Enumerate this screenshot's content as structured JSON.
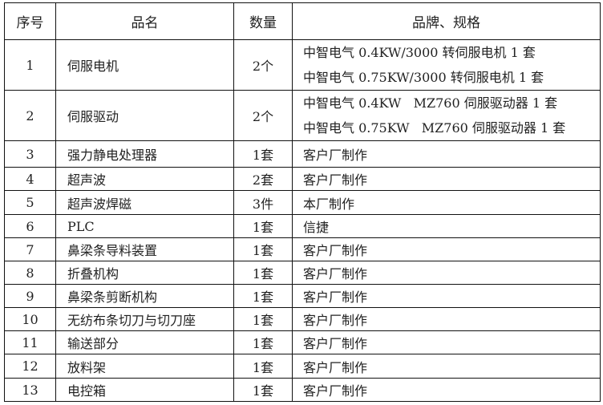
{
  "table": {
    "headers": [
      "序号",
      "品名",
      "数量",
      "品牌、规格"
    ],
    "rows": [
      {
        "no": "1",
        "name": "伺服电机",
        "qty": "2个",
        "brand": [
          "中智电气 0.4KW/3000 转伺服电机 1 套",
          "中智电气 0.75KW/3000 转伺服电机 1 套"
        ]
      },
      {
        "no": "2",
        "name": "伺服驱动",
        "qty": "2个",
        "brand": [
          "中智电气 0.4KW   MZ760 伺服驱动器 1 套",
          "中智电气 0.75KW   MZ760 伺服驱动器 1 套"
        ]
      },
      {
        "no": "3",
        "name": "强力静电处理器",
        "qty": "1套",
        "brand": [
          "客户厂制作"
        ]
      },
      {
        "no": "4",
        "name": "超声波",
        "qty": "2套",
        "brand": [
          "客户厂制作"
        ]
      },
      {
        "no": "5",
        "name": "超声波焊磁",
        "qty": "3件",
        "brand": [
          "本厂制作"
        ]
      },
      {
        "no": "6",
        "name": "PLC",
        "qty": "1套",
        "brand": [
          "信捷"
        ]
      },
      {
        "no": "7",
        "name": "鼻梁条导料装置",
        "qty": "1套",
        "brand": [
          "客户厂制作"
        ]
      },
      {
        "no": "8",
        "name": "折叠机构",
        "qty": "1套",
        "brand": [
          "客户厂制作"
        ]
      },
      {
        "no": "9",
        "name": "鼻梁条剪断机构",
        "qty": "1套",
        "brand": [
          "客户厂制作"
        ]
      },
      {
        "no": "10",
        "name": "无纺布条切刀与切刀座",
        "qty": "1套",
        "brand": [
          "客户厂制作"
        ]
      },
      {
        "no": "11",
        "name": "输送部分",
        "qty": "1套",
        "brand": [
          "客户厂制作"
        ]
      },
      {
        "no": "12",
        "name": "放料架",
        "qty": "1套",
        "brand": [
          "客户厂制作"
        ]
      },
      {
        "no": "13",
        "name": "电控箱",
        "qty": "1套",
        "brand": [
          "客户厂制作"
        ]
      }
    ]
  }
}
